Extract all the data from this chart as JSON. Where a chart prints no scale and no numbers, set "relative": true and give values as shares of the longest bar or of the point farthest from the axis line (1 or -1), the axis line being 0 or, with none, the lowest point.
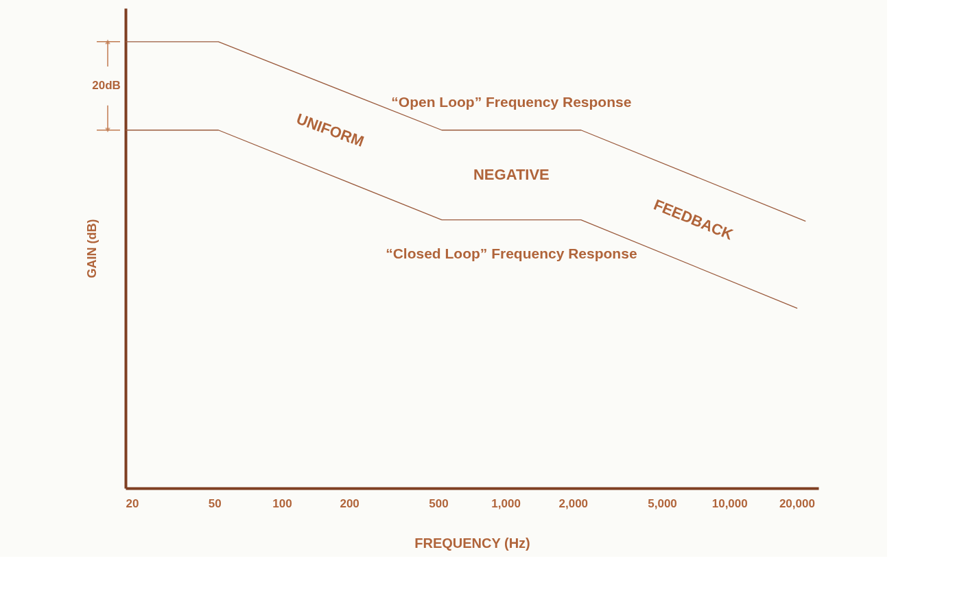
{
  "chart_data": {
    "type": "line",
    "relative": true,
    "xlabel": "FREQUENCY (Hz)",
    "ylabel": "GAIN (dB)",
    "log": "x",
    "xlim": [
      20,
      25000
    ],
    "xticks": [
      20,
      50,
      100,
      200,
      500,
      {
        "value": 1000,
        "label": "1,000"
      },
      {
        "value": 2000,
        "label": "2,000"
      },
      {
        "value": 5000,
        "label": "5,000"
      },
      {
        "value": 10000,
        "label": "10,000"
      },
      {
        "value": 20000,
        "label": "20,000"
      }
    ],
    "series": [
      {
        "name": "“Open Loop” Frequency Response",
        "color": "#9a5a3c",
        "x": [
          20,
          52,
          518,
          2170,
          21900
        ],
        "values": [
          1,
          1,
          0.802,
          0.802,
          0.598
        ]
      },
      {
        "name": "“Closed Loop” Frequency Response",
        "color": "#9a5a3c",
        "x": [
          20,
          52,
          518,
          2170,
          20100
        ],
        "values": [
          0.802,
          0.802,
          0.601,
          0.601,
          0.403
        ]
      }
    ],
    "annotations": [
      "20dB",
      "UNIFORM",
      "NEGATIVE",
      "FEEDBACK"
    ],
    "grid": false,
    "marker": "none",
    "line_style": "solid"
  }
}
